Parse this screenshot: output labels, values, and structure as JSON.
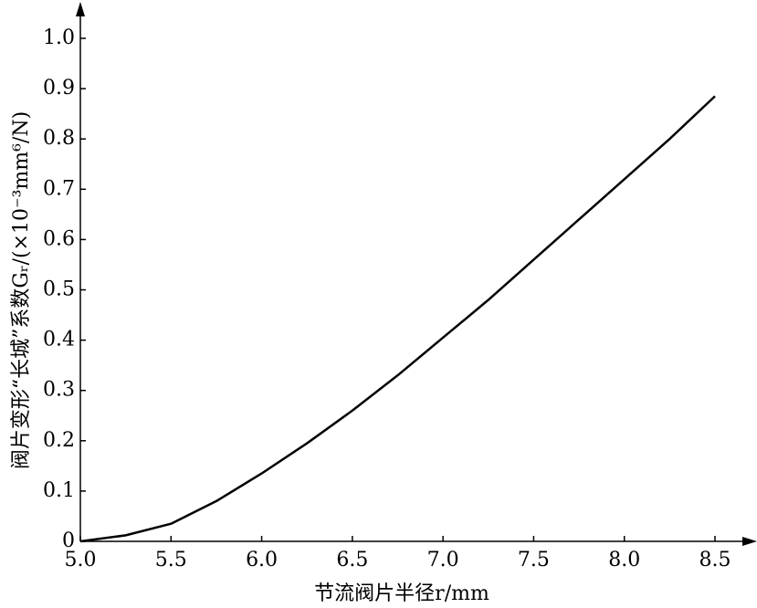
{
  "chart_data": {
    "type": "line",
    "x_label": "节流阀片半径r/mm",
    "y_label": "阀片变形“长城”系数Gᵣ/(×10⁻³mm⁶/N)",
    "x": [
      5.0,
      5.25,
      5.5,
      5.75,
      6.0,
      6.25,
      6.5,
      6.75,
      7.0,
      7.25,
      7.5,
      7.75,
      8.0,
      8.25,
      8.5
    ],
    "values": [
      0,
      0.012,
      0.035,
      0.08,
      0.135,
      0.195,
      0.26,
      0.33,
      0.405,
      0.48,
      0.56,
      0.64,
      0.72,
      0.8,
      0.885
    ],
    "color": "#000000",
    "xlim": [
      5.0,
      8.5
    ],
    "xticks": [
      {
        "value": 5,
        "label": "5.0"
      },
      5.5,
      {
        "value": 6,
        "label": "6.0"
      },
      6.5,
      {
        "value": 7,
        "label": "7.0"
      },
      7.5,
      {
        "value": 8,
        "label": "8.0"
      },
      8.5
    ],
    "ylim": [
      0,
      1.0
    ],
    "yticks": [
      0,
      0.1,
      0.2,
      0.3,
      0.4,
      0.5,
      0.6,
      0.7,
      0.8,
      0.9,
      {
        "value": 1,
        "label": "1.0"
      }
    ]
  }
}
